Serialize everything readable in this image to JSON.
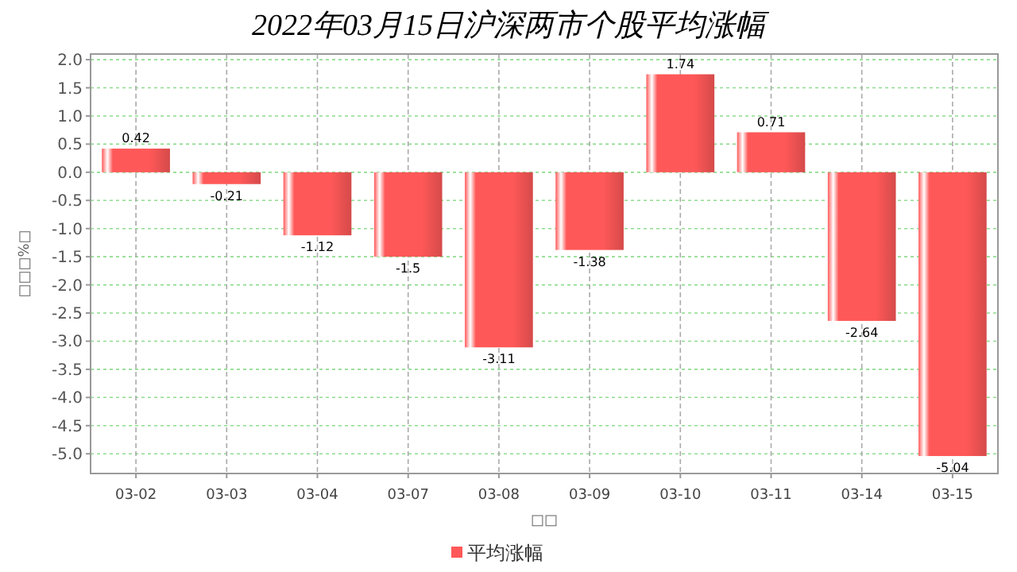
{
  "chart_data": {
    "type": "bar",
    "title": "2022年03月15日沪深两市个股平均涨幅",
    "xlabel": "□□",
    "ylabel": "□□□%□",
    "categories": [
      "03-02",
      "03-03",
      "03-04",
      "03-07",
      "03-08",
      "03-09",
      "03-10",
      "03-11",
      "03-14",
      "03-15"
    ],
    "series": [
      {
        "name": "平均涨幅",
        "color": "#ff5858",
        "values": [
          0.42,
          -0.21,
          -1.12,
          -1.5,
          -3.11,
          -1.38,
          1.74,
          0.71,
          -2.64,
          -5.04
        ]
      }
    ],
    "data_labels": true,
    "ylim": [
      -5.35,
      2.1
    ],
    "yticks": [
      {
        "value": 2,
        "label": "2.0"
      },
      {
        "value": 1.5,
        "label": "1.5"
      },
      {
        "value": 1,
        "label": "1.0"
      },
      {
        "value": 0.5,
        "label": "0.5"
      },
      {
        "value": 0,
        "label": "0.0"
      },
      {
        "value": -0.5,
        "label": "-0.5"
      },
      {
        "value": -1,
        "label": "-1.0"
      },
      {
        "value": -1.5,
        "label": "-1.5"
      },
      {
        "value": -2,
        "label": "-2.0"
      },
      {
        "value": -2.5,
        "label": "-2.5"
      },
      {
        "value": -3,
        "label": "-3.0"
      },
      {
        "value": -3.5,
        "label": "-3.5"
      },
      {
        "value": -4,
        "label": "-4.0"
      },
      {
        "value": -4.5,
        "label": "-4.5"
      },
      {
        "value": -5,
        "label": "-5.0"
      }
    ],
    "grid": true,
    "legend": "bottom"
  }
}
